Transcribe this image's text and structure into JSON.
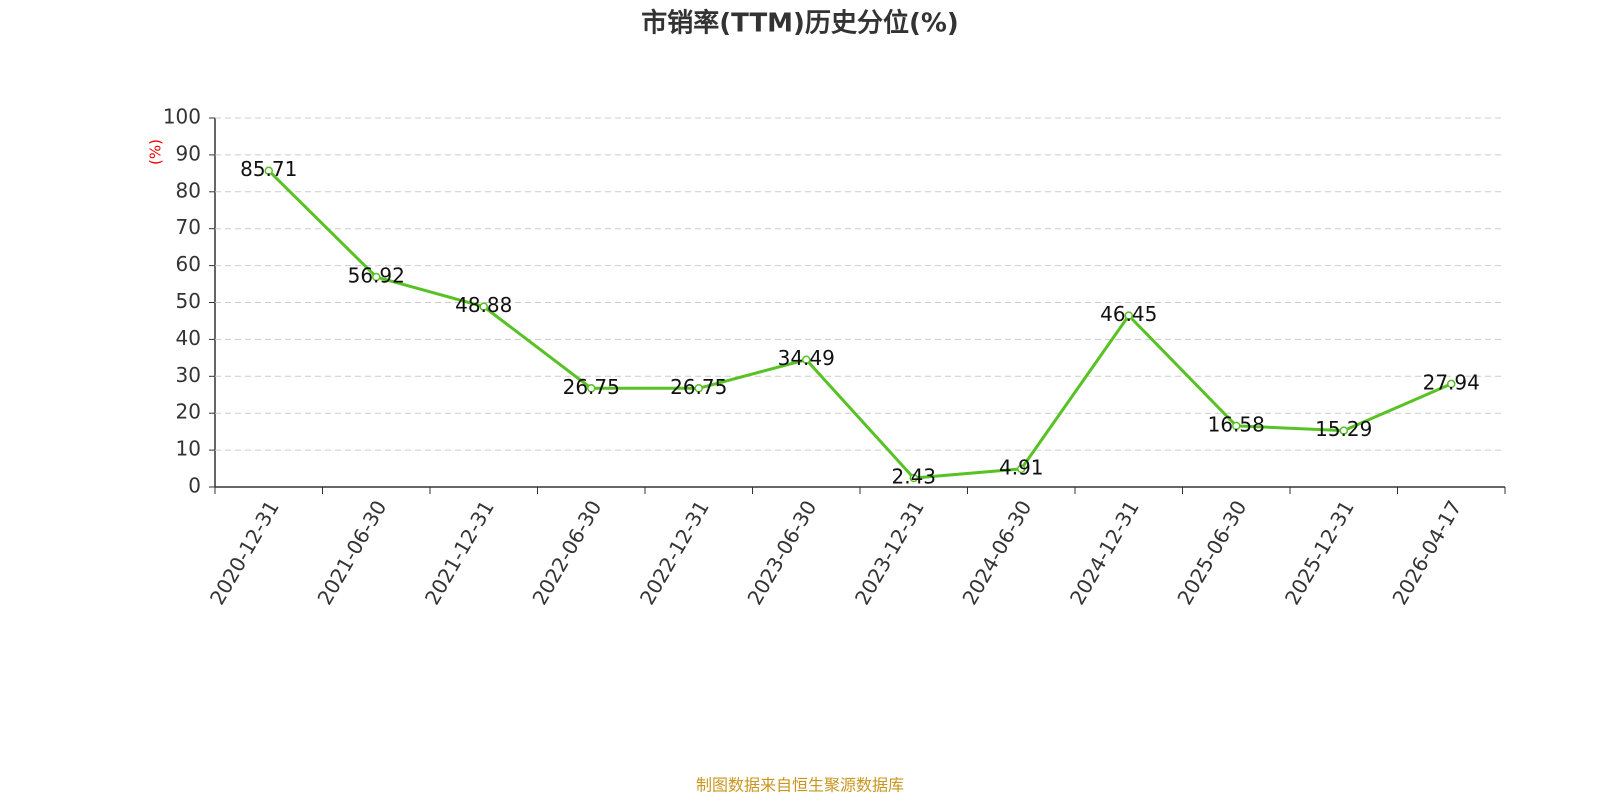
{
  "chart_data": {
    "type": "line",
    "title": "市销率(TTM)历史分位(%)",
    "ylabel": "(%)",
    "categories": [
      "2020-12-31",
      "2021-06-30",
      "2021-12-31",
      "2022-06-30",
      "2022-12-31",
      "2023-06-30",
      "2023-12-31",
      "2024-06-30",
      "2024-12-31",
      "2025-06-30",
      "2025-12-31",
      "2026-04-17"
    ],
    "series": [
      {
        "name": "市销率(TTM)历史分位",
        "color": "#58c224",
        "values": [
          85.71,
          56.92,
          48.88,
          26.75,
          26.75,
          34.49,
          2.43,
          4.91,
          46.45,
          16.58,
          15.29,
          27.94
        ]
      }
    ],
    "ylim": [
      0,
      100
    ],
    "yticks": [
      0,
      10,
      20,
      30,
      40,
      50,
      60,
      70,
      80,
      90,
      100
    ],
    "grid": true,
    "source": "制图数据来自恒生聚源数据库"
  }
}
